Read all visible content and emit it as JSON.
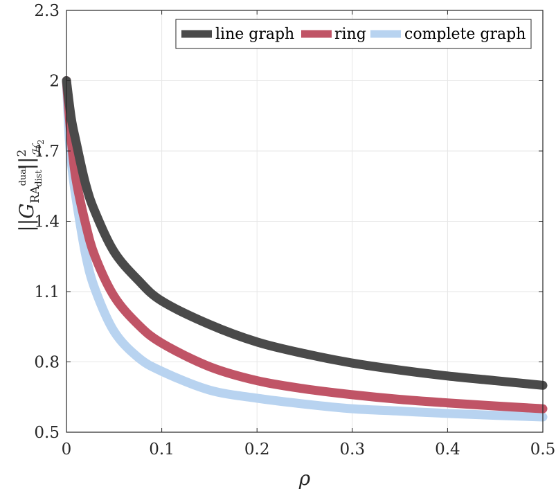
{
  "chart_data": {
    "type": "line",
    "xlabel": "ρ",
    "ylabel": "||G_RA^dual_dist||²_H2",
    "ylabel_parts": {
      "bars_left": "||",
      "G": "G",
      "sub_ra": "RA",
      "sup_dual": "dual",
      "sub_dist": "dist",
      "bars_right": "||",
      "sup_2": "2",
      "sub_h": "ℋ",
      "sub_h2": "2"
    },
    "xlim": [
      0,
      0.5
    ],
    "ylim": [
      0.5,
      2.3
    ],
    "xticks": [
      0,
      0.1,
      0.2,
      0.3,
      0.4,
      0.5
    ],
    "xtick_labels": [
      "0",
      "0.1",
      "0.2",
      "0.3",
      "0.4",
      "0.5"
    ],
    "yticks": [
      0.5,
      0.8,
      1.1,
      1.4,
      1.7,
      2,
      2.3
    ],
    "ytick_labels": [
      "0.5",
      "0.8",
      "1.1",
      "1.4",
      "1.7",
      "2",
      "2.3"
    ],
    "grid": true,
    "legend_position": "top-right",
    "series": [
      {
        "name": "line graph",
        "color": "#4a4a4a",
        "x": [
          0,
          0.005,
          0.01,
          0.02,
          0.03,
          0.05,
          0.075,
          0.1,
          0.15,
          0.2,
          0.25,
          0.3,
          0.35,
          0.4,
          0.45,
          0.5
        ],
        "y": [
          2.0,
          1.84,
          1.74,
          1.56,
          1.44,
          1.27,
          1.15,
          1.06,
          0.96,
          0.885,
          0.835,
          0.795,
          0.765,
          0.74,
          0.72,
          0.7
        ]
      },
      {
        "name": "ring",
        "color": "#c05466",
        "x": [
          0,
          0.005,
          0.01,
          0.02,
          0.03,
          0.05,
          0.075,
          0.1,
          0.15,
          0.2,
          0.25,
          0.3,
          0.35,
          0.4,
          0.45,
          0.5
        ],
        "y": [
          2.0,
          1.75,
          1.58,
          1.39,
          1.25,
          1.08,
          0.96,
          0.88,
          0.78,
          0.72,
          0.685,
          0.66,
          0.64,
          0.625,
          0.612,
          0.6
        ]
      },
      {
        "name": "complete graph",
        "color": "#b8d3f0",
        "x": [
          0,
          0.003,
          0.006,
          0.01,
          0.02,
          0.03,
          0.05,
          0.075,
          0.1,
          0.15,
          0.2,
          0.25,
          0.3,
          0.35,
          0.4,
          0.45,
          0.5
        ],
        "y": [
          2.0,
          1.75,
          1.62,
          1.5,
          1.26,
          1.11,
          0.93,
          0.82,
          0.76,
          0.68,
          0.645,
          0.62,
          0.6,
          0.59,
          0.58,
          0.572,
          0.565
        ]
      }
    ]
  }
}
